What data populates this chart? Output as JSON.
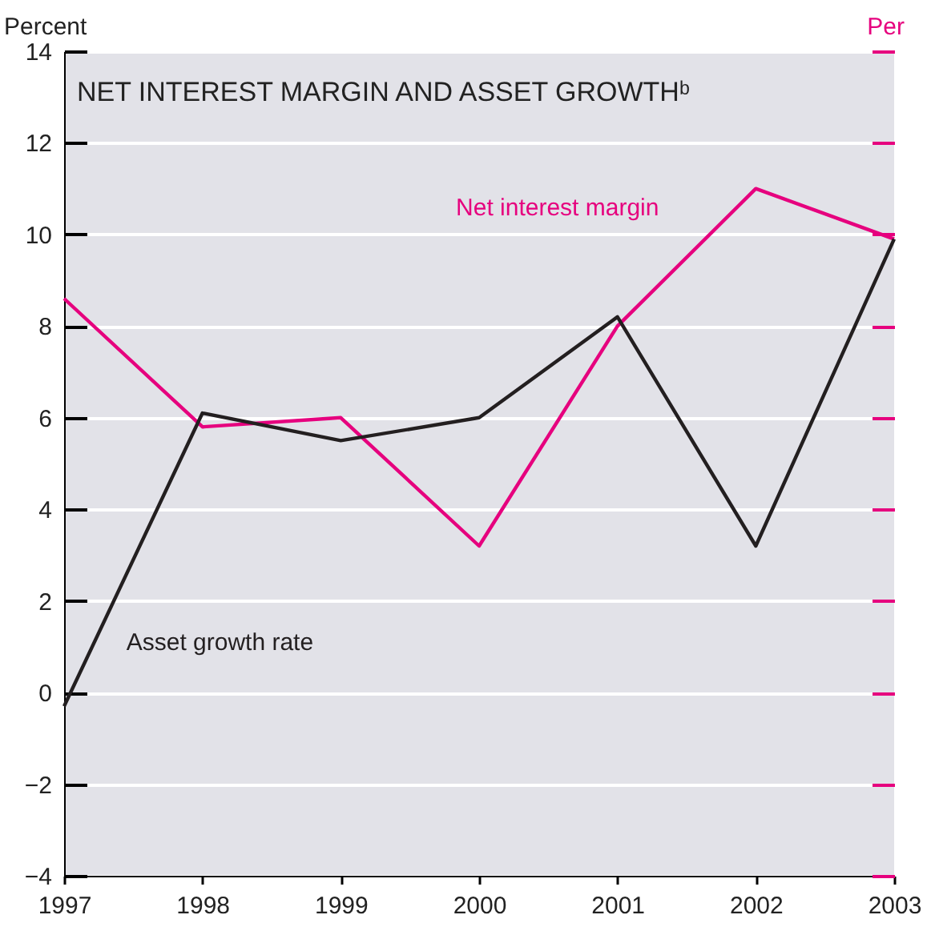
{
  "chart_data": {
    "type": "line",
    "title": "NET INTEREST MARGIN AND ASSET GROWTHᵇ",
    "ylabel": "Percent",
    "y2label": "Per",
    "x": [
      1997,
      1998,
      1999,
      2000,
      2001,
      2002,
      2003
    ],
    "series": [
      {
        "name": "Net interest margin",
        "color": "#e6007e",
        "values": [
          8.6,
          5.8,
          6.0,
          3.2,
          8.0,
          11.0,
          9.9
        ]
      },
      {
        "name": "Asset growth rate",
        "color": "#231f20",
        "values": [
          -0.3,
          6.1,
          5.5,
          6.0,
          8.2,
          3.2,
          9.9
        ]
      }
    ],
    "xlim": [
      1997,
      2003
    ],
    "xticks": [
      1997,
      1998,
      1999,
      2000,
      2001,
      2002,
      2003
    ],
    "ylim": [
      -4,
      14
    ],
    "yticks": [
      -4,
      -2,
      0,
      2,
      4,
      6,
      8,
      10,
      12,
      14
    ],
    "grid": "y",
    "marker": "none",
    "line_style": "solid",
    "legend": false
  }
}
